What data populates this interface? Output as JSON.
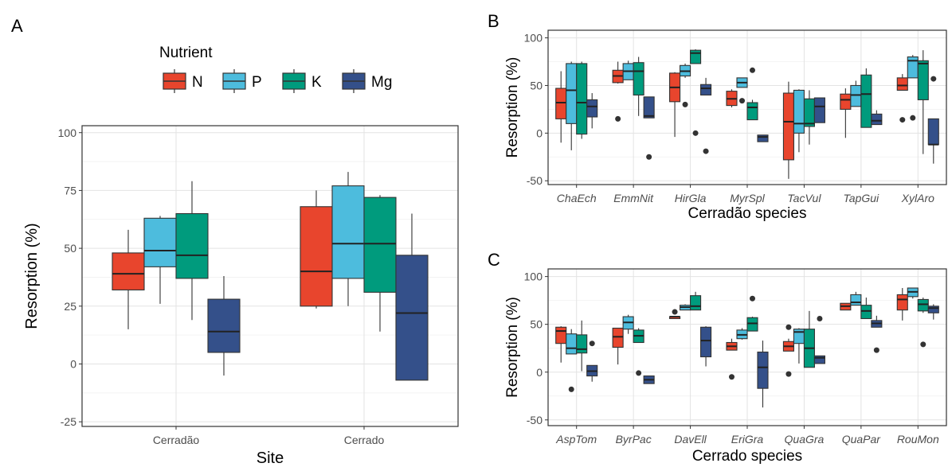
{
  "figure": {
    "legend": {
      "title": "Nutrient",
      "items": [
        {
          "label": "N",
          "color": "#E8452D"
        },
        {
          "label": "P",
          "color": "#4DBCDD"
        },
        {
          "label": "K",
          "color": "#009B7D"
        },
        {
          "label": "Mg",
          "color": "#34508A"
        }
      ]
    }
  },
  "chart_data": [
    {
      "panel": "A",
      "type": "boxplot",
      "xlabel": "Site",
      "ylabel": "Resorption (%)",
      "ylim": [
        -27,
        103
      ],
      "yticks": [
        -25,
        0,
        25,
        50,
        75,
        100
      ],
      "categories": [
        "Cerradão",
        "Cerrado"
      ],
      "series_names": [
        "N",
        "P",
        "K",
        "Mg"
      ],
      "boxes": [
        [
          {
            "min": 15,
            "q1": 32,
            "med": 39,
            "q3": 48,
            "max": 58,
            "out": []
          },
          {
            "min": 26,
            "q1": 42,
            "med": 49,
            "q3": 63,
            "max": 64,
            "out": []
          },
          {
            "min": 19,
            "q1": 37,
            "med": 47,
            "q3": 65,
            "max": 79,
            "out": []
          },
          {
            "min": -5,
            "q1": 5,
            "med": 14,
            "q3": 28,
            "max": 38,
            "out": []
          }
        ],
        [
          {
            "min": 24,
            "q1": 25,
            "med": 40,
            "q3": 68,
            "max": 75,
            "out": []
          },
          {
            "min": 25,
            "q1": 37,
            "med": 52,
            "q3": 77,
            "max": 83,
            "out": []
          },
          {
            "min": 14,
            "q1": 31,
            "med": 52,
            "q3": 72,
            "max": 73,
            "out": []
          },
          {
            "min": -7,
            "q1": -7,
            "med": 22,
            "q3": 47,
            "max": 65,
            "out": []
          }
        ]
      ]
    },
    {
      "panel": "B",
      "type": "boxplot",
      "xlabel": "Cerradão species",
      "ylabel": "Resorption (%)",
      "ylim": [
        -54,
        108
      ],
      "yticks": [
        -50,
        0,
        50,
        100
      ],
      "categories": [
        "ChaEch",
        "EmmNit",
        "HirGla",
        "MyrSpl",
        "TacVul",
        "TapGui",
        "XylAro"
      ],
      "series_names": [
        "N",
        "P",
        "K",
        "Mg"
      ],
      "boxes": [
        [
          {
            "min": -10,
            "q1": 15,
            "med": 32,
            "q3": 47,
            "max": 65,
            "out": []
          },
          {
            "min": -18,
            "q1": 10,
            "med": 45,
            "q3": 73,
            "max": 75,
            "out": []
          },
          {
            "min": -6,
            "q1": -1,
            "med": 32,
            "q3": 73,
            "max": 75,
            "out": []
          },
          {
            "min": 5,
            "q1": 17,
            "med": 28,
            "q3": 35,
            "max": 42,
            "out": []
          }
        ],
        [
          {
            "min": 52,
            "q1": 53,
            "med": 60,
            "q3": 66,
            "max": 75,
            "out": [
              15
            ]
          },
          {
            "min": 56,
            "q1": 56,
            "med": 65,
            "q3": 73,
            "max": 76,
            "out": []
          },
          {
            "min": 18,
            "q1": 40,
            "med": 65,
            "q3": 74,
            "max": 80,
            "out": []
          },
          {
            "min": 16,
            "q1": 16,
            "med": 18,
            "q3": 38,
            "max": 38,
            "out": [
              -25
            ]
          }
        ],
        [
          {
            "min": -4,
            "q1": 33,
            "med": 48,
            "q3": 63,
            "max": 64,
            "out": []
          },
          {
            "min": 58,
            "q1": 60,
            "med": 65,
            "q3": 71,
            "max": 73,
            "out": [
              30
            ]
          },
          {
            "min": 73,
            "q1": 73,
            "med": 84,
            "q3": 87,
            "max": 88,
            "out": [
              0
            ]
          },
          {
            "min": 40,
            "q1": 40,
            "med": 47,
            "q3": 51,
            "max": 58,
            "out": [
              -19
            ]
          }
        ],
        [
          {
            "min": 27,
            "q1": 29,
            "med": 36,
            "q3": 44,
            "max": 46,
            "out": []
          },
          {
            "min": 48,
            "q1": 48,
            "med": 53,
            "q3": 58,
            "max": 58,
            "out": [
              34
            ]
          },
          {
            "min": 14,
            "q1": 14,
            "med": 27,
            "q3": 32,
            "max": 35,
            "out": [
              66
            ]
          },
          {
            "min": -9,
            "q1": -9,
            "med": -4,
            "q3": -2,
            "max": -2,
            "out": []
          }
        ],
        [
          {
            "min": -48,
            "q1": -28,
            "med": 12,
            "q3": 42,
            "max": 54,
            "out": []
          },
          {
            "min": -20,
            "q1": 0,
            "med": 10,
            "q3": 45,
            "max": 46,
            "out": []
          },
          {
            "min": -12,
            "q1": 7,
            "med": 10,
            "q3": 36,
            "max": 45,
            "out": []
          },
          {
            "min": 11,
            "q1": 11,
            "med": 28,
            "q3": 37,
            "max": 37,
            "out": []
          }
        ],
        [
          {
            "min": -5,
            "q1": 25,
            "med": 35,
            "q3": 41,
            "max": 47,
            "out": []
          },
          {
            "min": 28,
            "q1": 28,
            "med": 40,
            "q3": 50,
            "max": 55,
            "out": []
          },
          {
            "min": 6,
            "q1": 6,
            "med": 41,
            "q3": 61,
            "max": 68,
            "out": []
          },
          {
            "min": 9,
            "q1": 9,
            "med": 13,
            "q3": 20,
            "max": 24,
            "out": []
          }
        ],
        [
          {
            "min": 45,
            "q1": 45,
            "med": 50,
            "q3": 58,
            "max": 62,
            "out": [
              14
            ]
          },
          {
            "min": 58,
            "q1": 58,
            "med": 76,
            "q3": 80,
            "max": 82,
            "out": [
              16
            ]
          },
          {
            "min": -22,
            "q1": 35,
            "med": 73,
            "q3": 76,
            "max": 87,
            "out": []
          },
          {
            "min": -32,
            "q1": -12,
            "med": -12,
            "q3": 15,
            "max": 15,
            "out": [
              57
            ]
          }
        ]
      ]
    },
    {
      "panel": "C",
      "type": "boxplot",
      "xlabel": "Cerrado species",
      "ylabel": "Resorption (%)",
      "ylim": [
        -56,
        108
      ],
      "yticks": [
        -50,
        0,
        50,
        100
      ],
      "categories": [
        "AspTom",
        "ByrPac",
        "DavEll",
        "EriGra",
        "QuaGra",
        "QuaPar",
        "RouMon"
      ],
      "series_names": [
        "N",
        "P",
        "K",
        "Mg"
      ],
      "boxes": [
        [
          {
            "min": 10,
            "q1": 30,
            "med": 43,
            "q3": 47,
            "max": 48,
            "out": []
          },
          {
            "min": 19,
            "q1": 19,
            "med": 25,
            "q3": 40,
            "max": 45,
            "out": [
              -18
            ]
          },
          {
            "min": 1,
            "q1": 20,
            "med": 24,
            "q3": 39,
            "max": 54,
            "out": []
          },
          {
            "min": -10,
            "q1": -4,
            "med": 1,
            "q3": 7,
            "max": 7,
            "out": [
              30
            ]
          }
        ],
        [
          {
            "min": 8,
            "q1": 26,
            "med": 37,
            "q3": 46,
            "max": 46,
            "out": []
          },
          {
            "min": 40,
            "q1": 45,
            "med": 52,
            "q3": 58,
            "max": 60,
            "out": []
          },
          {
            "min": 31,
            "q1": 31,
            "med": 38,
            "q3": 44,
            "max": 46,
            "out": [
              -1
            ]
          },
          {
            "min": -12,
            "q1": -12,
            "med": -8,
            "q3": -4,
            "max": -4,
            "out": []
          }
        ],
        [
          {
            "min": 56,
            "q1": 56,
            "med": 58,
            "q3": 58,
            "max": 58,
            "out": [
              63
            ]
          },
          {
            "min": 65,
            "q1": 65,
            "med": 68,
            "q3": 70,
            "max": 71,
            "out": []
          },
          {
            "min": 65,
            "q1": 65,
            "med": 69,
            "q3": 80,
            "max": 84,
            "out": []
          },
          {
            "min": 6,
            "q1": 16,
            "med": 33,
            "q3": 47,
            "max": 48,
            "out": []
          }
        ],
        [
          {
            "min": 23,
            "q1": 23,
            "med": 27,
            "q3": 31,
            "max": 35,
            "out": [
              -5
            ]
          },
          {
            "min": 34,
            "q1": 35,
            "med": 39,
            "q3": 44,
            "max": 46,
            "out": []
          },
          {
            "min": 43,
            "q1": 43,
            "med": 51,
            "q3": 57,
            "max": 58,
            "out": [
              77
            ]
          },
          {
            "min": -37,
            "q1": -17,
            "med": 5,
            "q3": 21,
            "max": 33,
            "out": []
          }
        ],
        [
          {
            "min": 22,
            "q1": 22,
            "med": 27,
            "q3": 32,
            "max": 35,
            "out": [
              -2,
              47
            ]
          },
          {
            "min": 9,
            "q1": 30,
            "med": 42,
            "q3": 45,
            "max": 46,
            "out": []
          },
          {
            "min": 5,
            "q1": 5,
            "med": 25,
            "q3": 45,
            "max": 64,
            "out": []
          },
          {
            "min": 9,
            "q1": 9,
            "med": 15,
            "q3": 17,
            "max": 17,
            "out": [
              56
            ]
          }
        ],
        [
          {
            "min": 65,
            "q1": 65,
            "med": 69,
            "q3": 72,
            "max": 72,
            "out": []
          },
          {
            "min": 70,
            "q1": 70,
            "med": 73,
            "q3": 81,
            "max": 84,
            "out": []
          },
          {
            "min": 56,
            "q1": 56,
            "med": 64,
            "q3": 70,
            "max": 78,
            "out": []
          },
          {
            "min": 47,
            "q1": 47,
            "med": 51,
            "q3": 54,
            "max": 59,
            "out": [
              23
            ]
          }
        ],
        [
          {
            "min": 54,
            "q1": 65,
            "med": 76,
            "q3": 81,
            "max": 88,
            "out": []
          },
          {
            "min": 77,
            "q1": 79,
            "med": 84,
            "q3": 88,
            "max": 88,
            "out": []
          },
          {
            "min": 62,
            "q1": 64,
            "med": 71,
            "q3": 76,
            "max": 78,
            "out": [
              29
            ]
          },
          {
            "min": 55,
            "q1": 62,
            "med": 67,
            "q3": 69,
            "max": 71,
            "out": []
          }
        ]
      ]
    }
  ]
}
